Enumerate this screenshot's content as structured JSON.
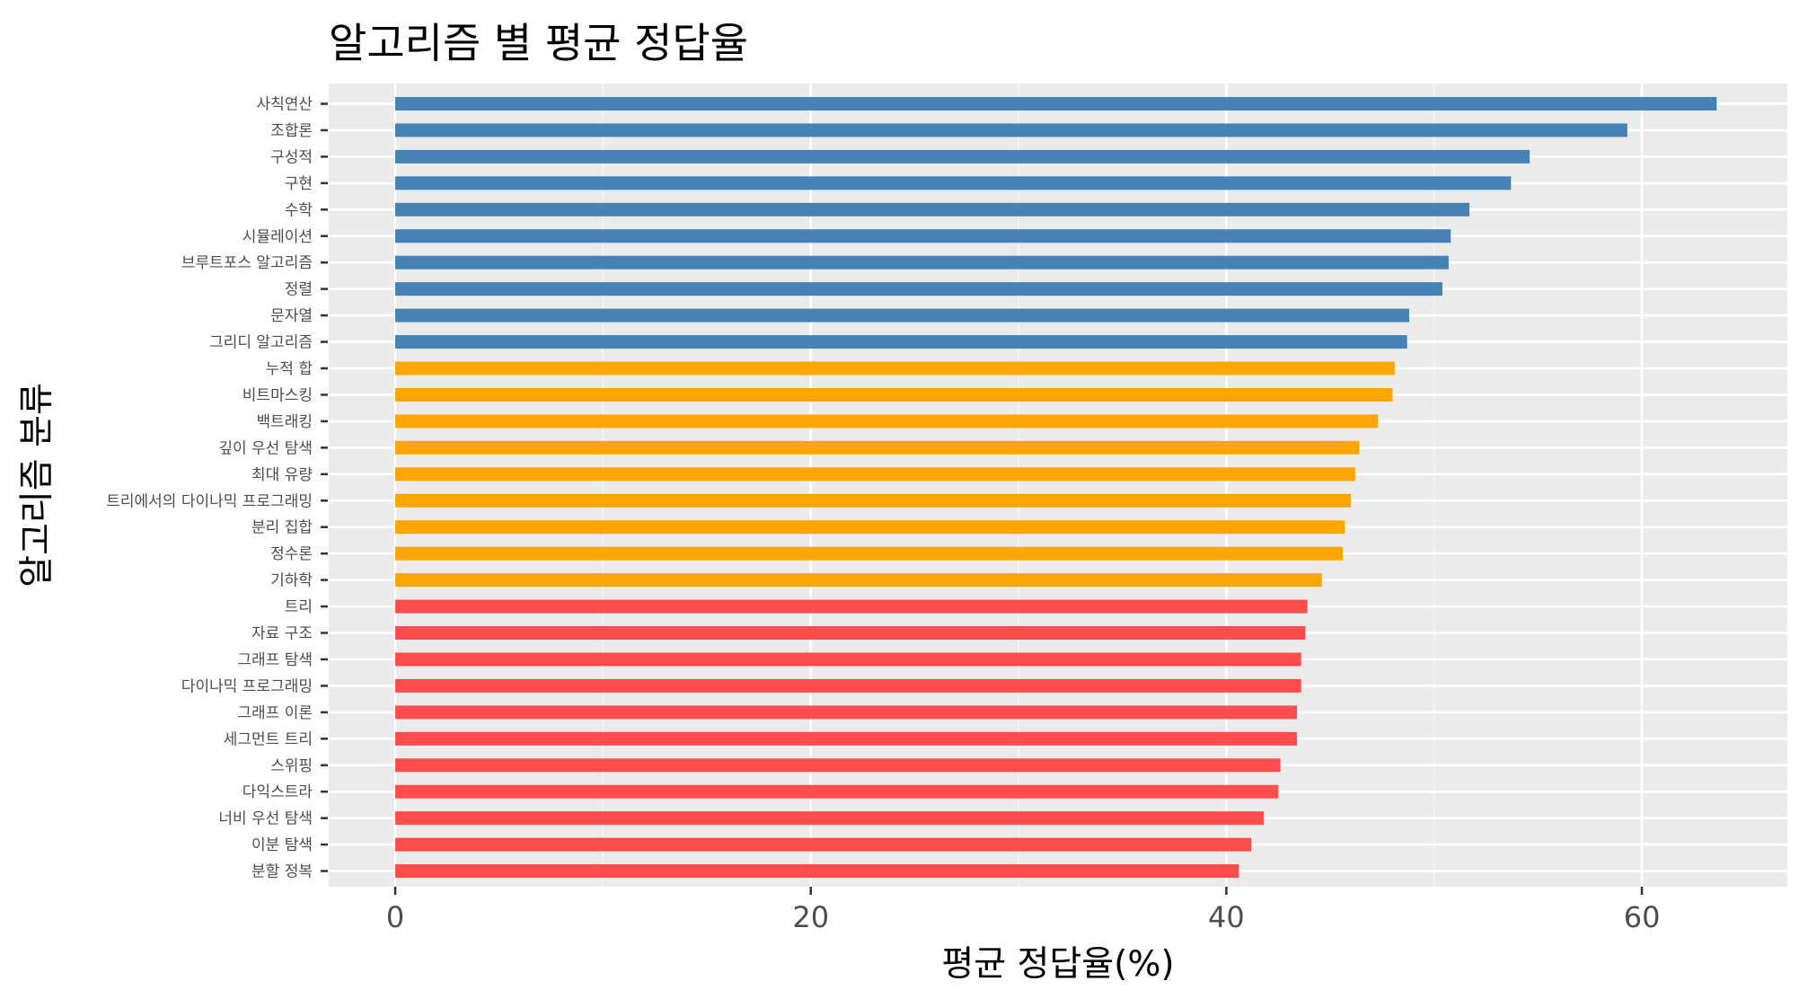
{
  "chart_data": {
    "type": "bar",
    "orientation": "horizontal",
    "title": "알고리즘 별 평균 정답율",
    "xlabel": "평균 정답율(%)",
    "ylabel": "알고리즘 분류",
    "xlim": [
      -3.2,
      67
    ],
    "x_ticks": [
      0,
      20,
      40,
      60
    ],
    "grid": true,
    "legend": "none",
    "colors": {
      "panel_background": "#ebebeb",
      "grid_major": "#ffffff",
      "grid_minor": "#f5f5f5",
      "tick_text": "#4d4d4d",
      "tick_marks": "#333333"
    },
    "categories": [
      "사칙연산",
      "조합론",
      "구성적",
      "구현",
      "수학",
      "시뮬레이션",
      "브루트포스 알고리즘",
      "정렬",
      "문자열",
      "그리디 알고리즘",
      "누적 합",
      "비트마스킹",
      "백트래킹",
      "깊이 우선 탐색",
      "최대 유량",
      "트리에서의 다이나믹 프로그래밍",
      "분리 집합",
      "정수론",
      "기하학",
      "트리",
      "자료 구조",
      "그래프 탐색",
      "다이나믹 프로그래밍",
      "그래프 이론",
      "세그먼트 트리",
      "스위핑",
      "다익스트라",
      "너비 우선 탐색",
      "이분 탐색",
      "분할 정복"
    ],
    "values": [
      63.6,
      59.3,
      54.6,
      53.7,
      51.7,
      50.8,
      50.7,
      50.4,
      48.8,
      48.7,
      48.1,
      48.0,
      47.3,
      46.4,
      46.2,
      46.0,
      45.7,
      45.6,
      44.6,
      43.9,
      43.8,
      43.6,
      43.6,
      43.4,
      43.4,
      42.6,
      42.5,
      41.8,
      41.2,
      40.6
    ],
    "bar_colors": [
      "#4682b4",
      "#4682b4",
      "#4682b4",
      "#4682b4",
      "#4682b4",
      "#4682b4",
      "#4682b4",
      "#4682b4",
      "#4682b4",
      "#4682b4",
      "#ffa500",
      "#ffa500",
      "#ffa500",
      "#ffa500",
      "#ffa500",
      "#ffa500",
      "#ffa500",
      "#ffa500",
      "#ffa500",
      "#ff4d4d",
      "#ff4d4d",
      "#ff4d4d",
      "#ff4d4d",
      "#ff4d4d",
      "#ff4d4d",
      "#ff4d4d",
      "#ff4d4d",
      "#ff4d4d",
      "#ff4d4d",
      "#ff4d4d"
    ]
  }
}
